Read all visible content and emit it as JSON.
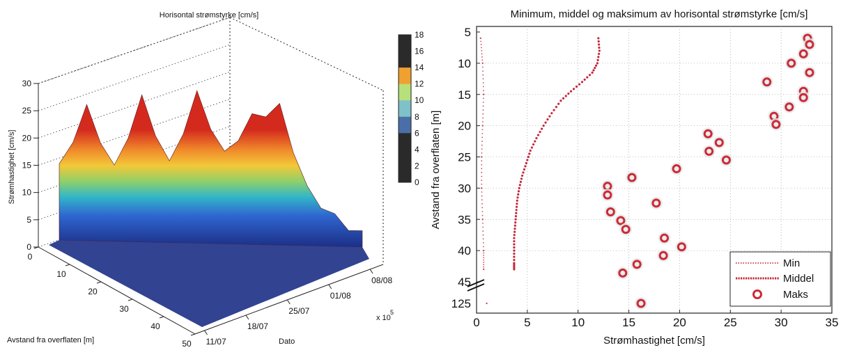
{
  "colors": {
    "min_series": "#c94a5a",
    "mean_series": "#c4293a",
    "max_series": "#cc2a36",
    "surface_high": "#d42a1e",
    "surface_mid": "#f3c838",
    "surface_low": "#2f66d0",
    "surface_base": "#1c2f86"
  },
  "chart_data": [
    {
      "type": "surface",
      "title": "Horisontal strømstyrke [cm/s]",
      "zlabel": "Strømhastighet [cm/s]",
      "depth_label": "Avstand fra overflaten [m]",
      "date_label": "Dato",
      "z_ticks": [
        "0",
        "5",
        "10",
        "15",
        "20",
        "25",
        "30"
      ],
      "depth_ticks": [
        "0",
        "10",
        "20",
        "30",
        "40",
        "50"
      ],
      "date_ticks": [
        "11/07",
        "18/07",
        "25/07",
        "01/08",
        "08/08"
      ],
      "date_multiplier": "x 10",
      "date_multiplier_exp": "5",
      "zlim": [
        0,
        30
      ],
      "depth_range": [
        0,
        50
      ],
      "colorbar_ticks": [
        "18",
        "16",
        "14",
        "12",
        "10",
        "8",
        "6",
        "4",
        "2",
        "0"
      ],
      "colorbar_range": [
        0,
        18
      ],
      "grid": true,
      "surface_ridge": [
        {
          "date": "11/07",
          "speed": 14
        },
        {
          "date": "13/07",
          "speed": 25
        },
        {
          "date": "15/07",
          "speed": 14
        },
        {
          "date": "17/07",
          "speed": 27
        },
        {
          "date": "19/07",
          "speed": 15
        },
        {
          "date": "21/07",
          "speed": 28
        },
        {
          "date": "24/07",
          "speed": 17
        },
        {
          "date": "26/07",
          "speed": 24
        },
        {
          "date": "29/07",
          "speed": 26
        },
        {
          "date": "01/08",
          "speed": 11
        },
        {
          "date": "05/08",
          "speed": 6
        },
        {
          "date": "09/08",
          "speed": 3
        }
      ]
    },
    {
      "type": "scatter",
      "title": "Minimum, middel og maksimum av horisontal strømstyrke [cm/s]",
      "xlabel": "Strømhastighet [cm/s]",
      "ylabel": "Avstand fra overflaten [m]",
      "xlim": [
        0,
        35
      ],
      "ylim": [
        5,
        45
      ],
      "y_break_label": "125",
      "y_inverted": true,
      "x_ticks": [
        "0",
        "5",
        "10",
        "15",
        "20",
        "25",
        "30",
        "35"
      ],
      "y_ticks": [
        "5",
        "10",
        "15",
        "20",
        "25",
        "30",
        "35",
        "40",
        "45"
      ],
      "grid": true,
      "legend_position": "bottom-right",
      "series": [
        {
          "name": "Min",
          "style": "dotted line",
          "points": [
            {
              "x": 0.4,
              "y": 6
            },
            {
              "x": 0.6,
              "y": 10
            },
            {
              "x": 0.7,
              "y": 15
            },
            {
              "x": 0.6,
              "y": 20
            },
            {
              "x": 0.5,
              "y": 25
            },
            {
              "x": 0.5,
              "y": 30
            },
            {
              "x": 0.6,
              "y": 35
            },
            {
              "x": 0.7,
              "y": 40
            },
            {
              "x": 0.7,
              "y": 43
            },
            {
              "x": 1.0,
              "y": "125"
            }
          ]
        },
        {
          "name": "Middel",
          "style": "dotted line",
          "points": [
            {
              "x": 12.0,
              "y": 6
            },
            {
              "x": 12.1,
              "y": 8
            },
            {
              "x": 11.9,
              "y": 10
            },
            {
              "x": 11.4,
              "y": 11.5
            },
            {
              "x": 10.4,
              "y": 13
            },
            {
              "x": 9.3,
              "y": 14.5
            },
            {
              "x": 8.3,
              "y": 16
            },
            {
              "x": 7.4,
              "y": 18
            },
            {
              "x": 6.6,
              "y": 20
            },
            {
              "x": 5.9,
              "y": 22
            },
            {
              "x": 5.3,
              "y": 24
            },
            {
              "x": 4.9,
              "y": 26
            },
            {
              "x": 4.5,
              "y": 28
            },
            {
              "x": 4.2,
              "y": 30
            },
            {
              "x": 4.0,
              "y": 32
            },
            {
              "x": 3.9,
              "y": 34
            },
            {
              "x": 3.8,
              "y": 36
            },
            {
              "x": 3.7,
              "y": 38
            },
            {
              "x": 3.7,
              "y": 40
            },
            {
              "x": 3.7,
              "y": 42
            },
            {
              "x": 3.7,
              "y": 43
            }
          ]
        },
        {
          "name": "Maks",
          "style": "circle markers",
          "points": [
            {
              "x": 32.6,
              "y": 6
            },
            {
              "x": 32.8,
              "y": 7
            },
            {
              "x": 32.2,
              "y": 8.5
            },
            {
              "x": 31.0,
              "y": 10
            },
            {
              "x": 32.8,
              "y": 11.5
            },
            {
              "x": 28.6,
              "y": 13
            },
            {
              "x": 32.2,
              "y": 14.5
            },
            {
              "x": 32.2,
              "y": 15.5
            },
            {
              "x": 30.8,
              "y": 17
            },
            {
              "x": 29.3,
              "y": 18.5
            },
            {
              "x": 29.5,
              "y": 19.8
            },
            {
              "x": 22.8,
              "y": 21.3
            },
            {
              "x": 23.9,
              "y": 22.7
            },
            {
              "x": 22.9,
              "y": 24.1
            },
            {
              "x": 24.6,
              "y": 25.5
            },
            {
              "x": 19.7,
              "y": 26.9
            },
            {
              "x": 15.3,
              "y": 28.3
            },
            {
              "x": 12.9,
              "y": 29.7
            },
            {
              "x": 12.9,
              "y": 31.1
            },
            {
              "x": 17.7,
              "y": 32.4
            },
            {
              "x": 13.2,
              "y": 33.8
            },
            {
              "x": 14.2,
              "y": 35.2
            },
            {
              "x": 14.7,
              "y": 36.6
            },
            {
              "x": 18.5,
              "y": 38
            },
            {
              "x": 20.2,
              "y": 39.4
            },
            {
              "x": 18.4,
              "y": 40.8
            },
            {
              "x": 15.8,
              "y": 42.2
            },
            {
              "x": 14.4,
              "y": 43.6
            },
            {
              "x": 16.2,
              "y": "125"
            }
          ]
        }
      ]
    }
  ]
}
